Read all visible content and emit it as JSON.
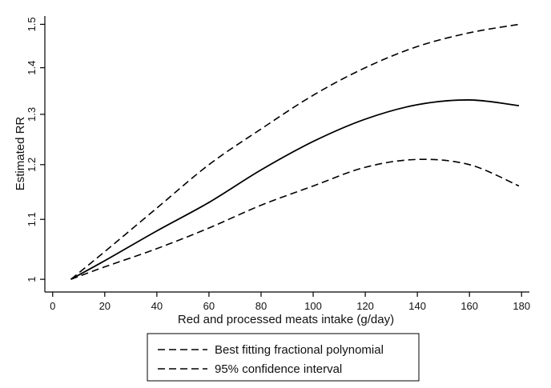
{
  "chart_data": {
    "type": "line",
    "title": "",
    "xlabel": "Red and processed meats intake (g/day)",
    "ylabel": "Estimated RR",
    "xlim": [
      -3,
      183
    ],
    "ylim": [
      0.98,
      1.52
    ],
    "y_scale": "log",
    "x_ticks": [
      0,
      20,
      40,
      60,
      80,
      100,
      120,
      140,
      160,
      180
    ],
    "x_tick_labels": [
      "0",
      "20",
      "40",
      "60",
      "80",
      "100",
      "120",
      "140",
      "160",
      "180"
    ],
    "y_ticks": [
      1,
      1.1,
      1.2,
      1.3,
      1.4,
      1.5
    ],
    "y_tick_labels": [
      "1",
      "1.1",
      "1.2",
      "1.3",
      "1.4",
      "1.5"
    ],
    "grid": false,
    "legend_position": "bottom",
    "legend": [
      {
        "label": "Best fitting fractional polynomial",
        "style": "dashed"
      },
      {
        "label": "95% confidence interval",
        "style": "dashed"
      }
    ],
    "series": [
      {
        "name": "Best fitting fractional polynomial",
        "style": "solid",
        "x": [
          7,
          20,
          40,
          60,
          80,
          100,
          120,
          140,
          160,
          179
        ],
        "y": [
          1.0,
          1.03,
          1.08,
          1.13,
          1.19,
          1.245,
          1.29,
          1.32,
          1.33,
          1.318
        ]
      },
      {
        "name": "95% confidence interval (upper)",
        "style": "dashed",
        "x": [
          7,
          20,
          40,
          60,
          80,
          100,
          120,
          140,
          160,
          179
        ],
        "y": [
          1.0,
          1.045,
          1.12,
          1.2,
          1.27,
          1.34,
          1.4,
          1.448,
          1.48,
          1.5
        ]
      },
      {
        "name": "95% confidence interval (lower)",
        "style": "dashed",
        "x": [
          7,
          20,
          40,
          60,
          80,
          100,
          120,
          140,
          160,
          179
        ],
        "y": [
          1.0,
          1.02,
          1.05,
          1.085,
          1.125,
          1.16,
          1.195,
          1.21,
          1.2,
          1.16
        ]
      }
    ]
  }
}
